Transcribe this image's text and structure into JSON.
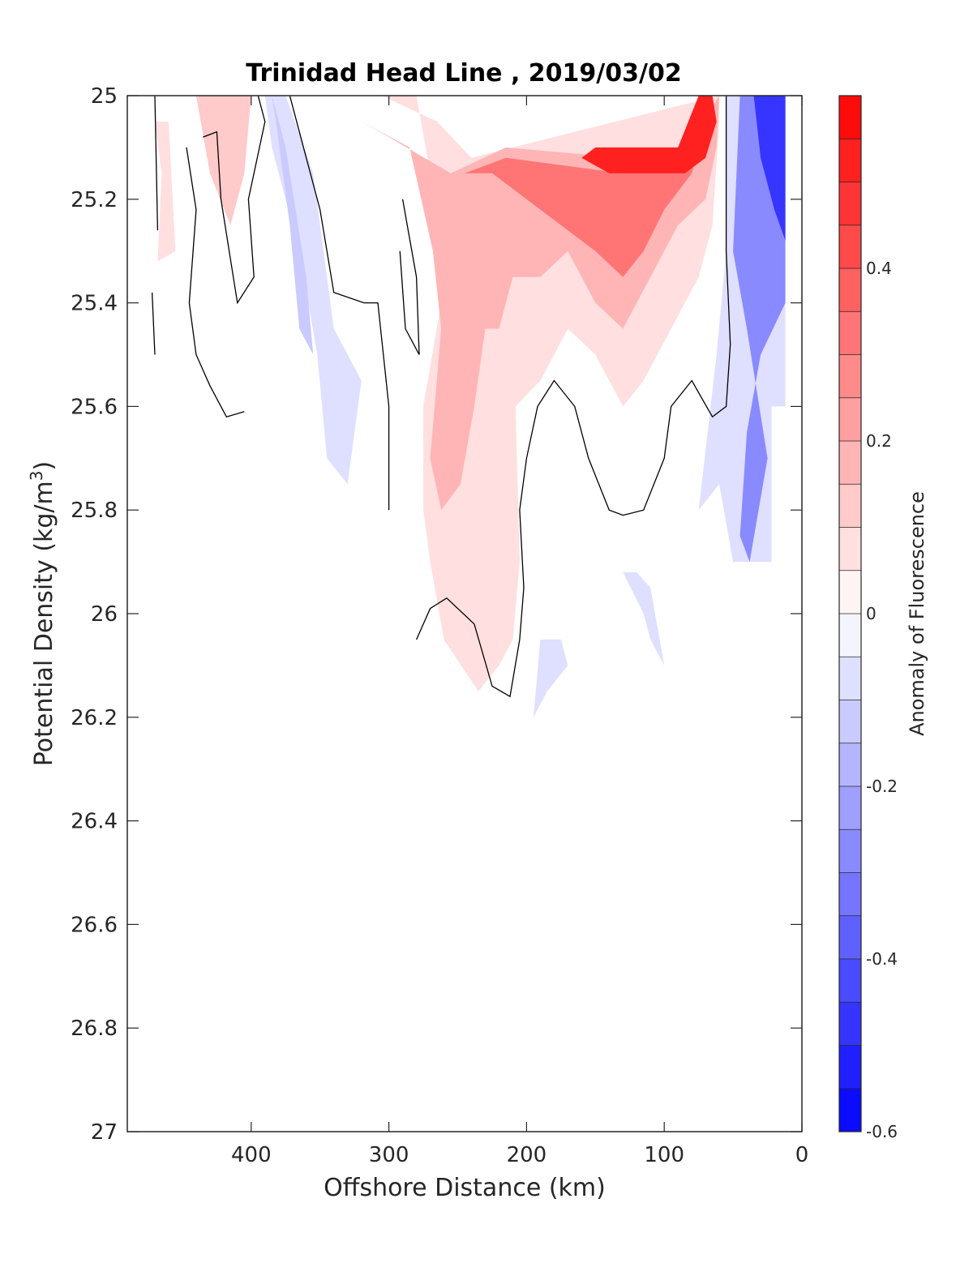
{
  "chart_data": {
    "type": "contourf",
    "title": "Trinidad Head Line , 2019/03/02",
    "xlabel": "Offshore Distance (km)",
    "ylabel_main": "Potential Density (kg/m",
    "ylabel_sup": "3",
    "ylabel_close": ")",
    "xlim": [
      490,
      0
    ],
    "ylim": [
      25,
      27
    ],
    "x_reversed": true,
    "y_reversed": true,
    "xticks": [
      400,
      300,
      200,
      100,
      0
    ],
    "xtick_labels": [
      "400",
      "300",
      "200",
      "100",
      "0"
    ],
    "yticks": [
      25,
      25.2,
      25.4,
      25.6,
      25.8,
      26,
      26.2,
      26.4,
      26.6,
      26.8,
      27
    ],
    "ytick_labels": [
      "25",
      "25.2",
      "25.4",
      "25.6",
      "25.8",
      "26",
      "26.2",
      "26.4",
      "26.6",
      "26.8",
      "27"
    ],
    "colorbar": {
      "label": "Anomaly of Fluorescence",
      "range": [
        -0.6,
        0.6
      ],
      "levels": 24,
      "ticks": [
        -0.6,
        -0.4,
        -0.2,
        0,
        0.2,
        0.4
      ],
      "tick_labels": [
        "-0.6",
        "-0.4",
        "-0.2",
        "0",
        "0.2",
        "0.4"
      ],
      "color_low": "#0000ff",
      "color_mid": "#ffffff",
      "color_high": "#ff0000"
    },
    "regions": [
      {
        "name": "neg-offshore-band-390",
        "level": -0.1,
        "points": [
          [
            390,
            25
          ],
          [
            375,
            25
          ],
          [
            355,
            25.15
          ],
          [
            340,
            25.45
          ],
          [
            320,
            25.55
          ],
          [
            330,
            25.75
          ],
          [
            345,
            25.7
          ],
          [
            352,
            25.5
          ],
          [
            365,
            25.3
          ],
          [
            385,
            25.1
          ]
        ]
      },
      {
        "name": "neg-offshore-band-390-core",
        "level": -0.15,
        "points": [
          [
            385,
            25
          ],
          [
            375,
            25.1
          ],
          [
            360,
            25.35
          ],
          [
            355,
            25.5
          ],
          [
            365,
            25.45
          ],
          [
            372,
            25.25
          ],
          [
            382,
            25.05
          ]
        ]
      },
      {
        "name": "pos-offshore-470",
        "level": 0.05,
        "points": [
          [
            480,
            25.05
          ],
          [
            470,
            25.05
          ],
          [
            465,
            25.15
          ],
          [
            468,
            25.32
          ],
          [
            455,
            25.3
          ],
          [
            460,
            25.05
          ]
        ]
      },
      {
        "name": "pos-offshore-420",
        "level": 0.1,
        "points": [
          [
            440,
            25
          ],
          [
            400,
            25
          ],
          [
            405,
            25.15
          ],
          [
            415,
            25.25
          ],
          [
            430,
            25.15
          ]
        ]
      },
      {
        "name": "pos-main-outer",
        "level": 0.05,
        "points": [
          [
            345,
            25
          ],
          [
            280,
            25
          ],
          [
            270,
            25.15
          ],
          [
            262,
            25.4
          ],
          [
            275,
            25.6
          ],
          [
            275,
            25.8
          ],
          [
            270,
            25.9
          ],
          [
            260,
            26.05
          ],
          [
            235,
            26.15
          ],
          [
            220,
            26.1
          ],
          [
            210,
            26.05
          ],
          [
            205,
            25.9
          ],
          [
            208,
            25.6
          ],
          [
            190,
            25.55
          ],
          [
            170,
            25.45
          ],
          [
            150,
            25.5
          ],
          [
            130,
            25.6
          ],
          [
            115,
            25.55
          ],
          [
            95,
            25.45
          ],
          [
            75,
            25.35
          ],
          [
            65,
            25.25
          ],
          [
            60,
            25.05
          ],
          [
            60,
            25
          ],
          [
            210,
            25.1
          ],
          [
            240,
            25.12
          ],
          [
            265,
            25.05
          ],
          [
            305,
            25
          ]
        ]
      },
      {
        "name": "pos-main-inner",
        "level": 0.15,
        "points": [
          [
            320,
            25.05
          ],
          [
            285,
            25.1
          ],
          [
            268,
            25.3
          ],
          [
            262,
            25.45
          ],
          [
            270,
            25.7
          ],
          [
            262,
            25.8
          ],
          [
            248,
            25.75
          ],
          [
            238,
            25.6
          ],
          [
            230,
            25.45
          ],
          [
            220,
            25.45
          ],
          [
            210,
            25.35
          ],
          [
            190,
            25.35
          ],
          [
            170,
            25.3
          ],
          [
            150,
            25.4
          ],
          [
            130,
            25.45
          ],
          [
            110,
            25.35
          ],
          [
            90,
            25.25
          ],
          [
            70,
            25.2
          ],
          [
            62,
            25.1
          ],
          [
            60,
            25
          ],
          [
            85,
            25.1
          ],
          [
            130,
            25.12
          ],
          [
            215,
            25.1
          ],
          [
            255,
            25.15
          ],
          [
            300,
            25.08
          ]
        ]
      },
      {
        "name": "pos-core",
        "level": 0.3,
        "points": [
          [
            245,
            25.15
          ],
          [
            225,
            25.15
          ],
          [
            200,
            25.2
          ],
          [
            175,
            25.25
          ],
          [
            150,
            25.3
          ],
          [
            130,
            25.35
          ],
          [
            115,
            25.3
          ],
          [
            100,
            25.22
          ],
          [
            80,
            25.15
          ],
          [
            70,
            25.05
          ],
          [
            65,
            25
          ],
          [
            85,
            25.1
          ],
          [
            130,
            25.15
          ],
          [
            215,
            25.12
          ]
        ]
      },
      {
        "name": "pos-peak",
        "level": 0.5,
        "points": [
          [
            75,
            25
          ],
          [
            65,
            25
          ],
          [
            62,
            25.05
          ],
          [
            70,
            25.12
          ],
          [
            85,
            25.15
          ],
          [
            110,
            25.15
          ],
          [
            140,
            25.15
          ],
          [
            160,
            25.12
          ],
          [
            150,
            25.1
          ],
          [
            90,
            25.1
          ]
        ]
      },
      {
        "name": "neg-inshore",
        "level": -0.1,
        "points": [
          [
            55,
            25
          ],
          [
            12,
            25
          ],
          [
            12,
            25.6
          ],
          [
            22,
            25.6
          ],
          [
            22,
            25.9
          ],
          [
            50,
            25.9
          ],
          [
            60,
            25.75
          ],
          [
            75,
            25.8
          ],
          [
            62,
            25.5
          ],
          [
            55,
            25.3
          ]
        ]
      },
      {
        "name": "neg-inshore-core",
        "level": -0.3,
        "points": [
          [
            45,
            25
          ],
          [
            12,
            25
          ],
          [
            12,
            25.4
          ],
          [
            30,
            25.5
          ],
          [
            40,
            25.65
          ],
          [
            45,
            25.85
          ],
          [
            38,
            25.9
          ],
          [
            25,
            25.7
          ],
          [
            40,
            25.45
          ],
          [
            50,
            25.3
          ]
        ]
      },
      {
        "name": "neg-inshore-peak",
        "level": -0.45,
        "points": [
          [
            35,
            25
          ],
          [
            12,
            25
          ],
          [
            12,
            25.28
          ],
          [
            20,
            25.22
          ],
          [
            30,
            25.12
          ]
        ]
      },
      {
        "name": "neg-deep-170",
        "level": -0.1,
        "points": [
          [
            175,
            26.05
          ],
          [
            170,
            26.1
          ],
          [
            185,
            26.15
          ],
          [
            195,
            26.2
          ],
          [
            190,
            26.05
          ]
        ]
      },
      {
        "name": "neg-deep-120",
        "level": -0.1,
        "points": [
          [
            130,
            25.92
          ],
          [
            115,
            26
          ],
          [
            110,
            26.05
          ],
          [
            100,
            26.1
          ],
          [
            110,
            25.95
          ],
          [
            120,
            25.92
          ]
        ]
      }
    ],
    "contours_zero": [
      {
        "name": "zero-line-a",
        "points": [
          [
            470,
            25
          ],
          [
            468,
            25.26
          ]
        ]
      },
      {
        "name": "zero-line-b",
        "points": [
          [
            472,
            25.38
          ],
          [
            470,
            25.5
          ]
        ]
      },
      {
        "name": "zero-line-c",
        "points": [
          [
            435,
            25.08
          ],
          [
            425,
            25.07
          ],
          [
            422,
            25.2
          ],
          [
            410,
            25.4
          ],
          [
            398,
            25.35
          ],
          [
            402,
            25.2
          ],
          [
            390,
            25.05
          ],
          [
            395,
            25
          ]
        ]
      },
      {
        "name": "zero-line-d",
        "points": [
          [
            447,
            25.1
          ],
          [
            440,
            25.22
          ],
          [
            445,
            25.4
          ],
          [
            440,
            25.5
          ],
          [
            430,
            25.56
          ],
          [
            418,
            25.62
          ],
          [
            405,
            25.61
          ]
        ]
      },
      {
        "name": "zero-line-e",
        "points": [
          [
            372,
            25
          ],
          [
            360,
            25.12
          ],
          [
            350,
            25.22
          ],
          [
            340,
            25.38
          ],
          [
            318,
            25.4
          ],
          [
            308,
            25.4
          ],
          [
            300,
            25.6
          ],
          [
            300,
            25.8
          ]
        ]
      },
      {
        "name": "zero-line-f",
        "points": [
          [
            290,
            25.2
          ],
          [
            280,
            25.35
          ],
          [
            278,
            25.5
          ],
          [
            288,
            25.45
          ],
          [
            292,
            25.3
          ]
        ]
      },
      {
        "name": "zero-line-g",
        "points": [
          [
            280,
            26.05
          ],
          [
            270,
            25.99
          ],
          [
            258,
            25.97
          ],
          [
            238,
            26.02
          ],
          [
            225,
            26.14
          ],
          [
            212,
            26.16
          ],
          [
            205,
            26.05
          ],
          [
            202,
            25.95
          ],
          [
            205,
            25.8
          ],
          [
            200,
            25.7
          ],
          [
            192,
            25.6
          ],
          [
            180,
            25.55
          ],
          [
            165,
            25.6
          ],
          [
            155,
            25.7
          ],
          [
            140,
            25.8
          ],
          [
            130,
            25.81
          ],
          [
            115,
            25.8
          ],
          [
            100,
            25.7
          ],
          [
            95,
            25.6
          ],
          [
            80,
            25.55
          ],
          [
            65,
            25.62
          ],
          [
            55,
            25.6
          ],
          [
            52,
            25.48
          ],
          [
            55,
            25.3
          ],
          [
            55,
            25.1
          ],
          [
            55,
            25
          ]
        ]
      }
    ]
  }
}
